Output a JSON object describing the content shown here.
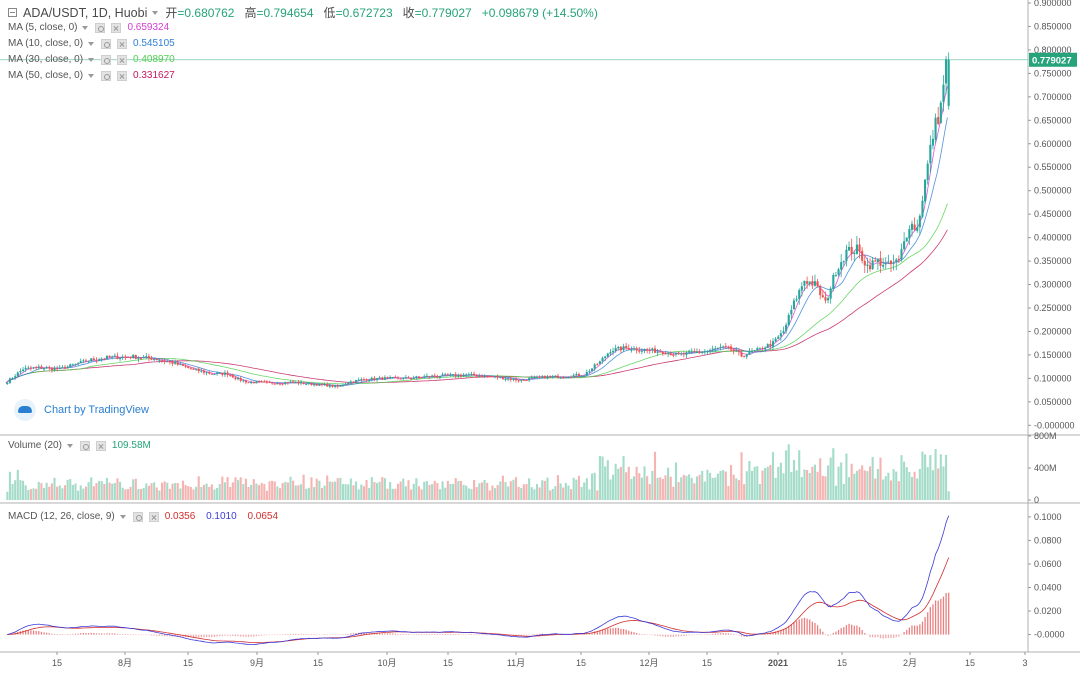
{
  "header": {
    "symbol": "ADA/USDT, 1D, Huobi",
    "ohlc": [
      {
        "k": "开",
        "v": "=0.680762"
      },
      {
        "k": "高",
        "v": "=0.794654"
      },
      {
        "k": "低",
        "v": "=0.672723"
      },
      {
        "k": "收",
        "v": "=0.779027"
      }
    ],
    "change": "+0.098679 (+14.50%)"
  },
  "indicators": [
    {
      "label": "MA (5, close, 0)",
      "value": "0.659324",
      "color": "#d53bd5"
    },
    {
      "label": "MA (10, close, 0)",
      "value": "0.545105",
      "color": "#2f7fd6"
    },
    {
      "label": "MA (30, close, 0)",
      "value": "0.408970",
      "color": "#4fcf4f"
    },
    {
      "label": "MA (50, close, 0)",
      "value": "0.331627",
      "color": "#c2185b"
    }
  ],
  "volume_legend": {
    "label": "Volume (20)",
    "value": "109.58M",
    "color": "#26a37a"
  },
  "macd_legend": {
    "label": "MACD (12, 26, close, 9)",
    "hist": "0.0356",
    "macd": "0.1010",
    "signal": "0.0654",
    "hist_color": "#d32f2f",
    "macd_color": "#3a3ad8",
    "signal_color": "#d32f2f"
  },
  "watermark": "Chart by TradingView",
  "colors": {
    "up": "#26a69a",
    "down": "#ef5350",
    "vol_up": "#a5dcc9",
    "vol_down": "#f5b3b1",
    "ma5": "#d53bd5",
    "ma10": "#2f7fd6",
    "ma30": "#4fcf4f",
    "ma50": "#c2185b",
    "macd": "#3a3ad8",
    "signal": "#d32f2f",
    "last_price_bg": "#26a37a"
  },
  "chart_data": [
    {
      "type": "candlestick",
      "title": "ADA/USDT, 1D, Huobi",
      "x_ticks": [
        "15",
        "8月",
        "15",
        "9月",
        "15",
        "10月",
        "15",
        "11月",
        "15",
        "12月",
        "15",
        "2021",
        "15",
        "2月",
        "15",
        "3"
      ],
      "y_ticks": [
        "-0.000000",
        "0.050000",
        "0.100000",
        "0.150000",
        "0.200000",
        "0.250000",
        "0.300000",
        "0.350000",
        "0.400000",
        "0.450000",
        "0.500000",
        "0.550000",
        "0.600000",
        "0.650000",
        "0.700000",
        "0.750000",
        "0.800000",
        "0.850000",
        "0.900000"
      ],
      "ylim": [
        -0.01,
        0.9
      ],
      "last_price": "0.779027",
      "close_points": [
        [
          0,
          0.093
        ],
        [
          6,
          0.12
        ],
        [
          12,
          0.123
        ],
        [
          20,
          0.12
        ],
        [
          26,
          0.13
        ],
        [
          32,
          0.14
        ],
        [
          40,
          0.145
        ],
        [
          48,
          0.146
        ],
        [
          56,
          0.142
        ],
        [
          62,
          0.135
        ],
        [
          70,
          0.12
        ],
        [
          78,
          0.11
        ],
        [
          84,
          0.11
        ],
        [
          88,
          0.098
        ],
        [
          92,
          0.092
        ],
        [
          100,
          0.09
        ],
        [
          108,
          0.092
        ],
        [
          116,
          0.088
        ],
        [
          122,
          0.085
        ],
        [
          126,
          0.082
        ],
        [
          130,
          0.092
        ],
        [
          136,
          0.098
        ],
        [
          144,
          0.1
        ],
        [
          152,
          0.1
        ],
        [
          160,
          0.104
        ],
        [
          168,
          0.106
        ],
        [
          176,
          0.107
        ],
        [
          184,
          0.104
        ],
        [
          190,
          0.1
        ],
        [
          196,
          0.096
        ],
        [
          200,
          0.1
        ],
        [
          206,
          0.103
        ],
        [
          212,
          0.104
        ],
        [
          220,
          0.108
        ],
        [
          226,
          0.135
        ],
        [
          230,
          0.16
        ],
        [
          236,
          0.165
        ],
        [
          244,
          0.16
        ],
        [
          250,
          0.157
        ],
        [
          256,
          0.15
        ],
        [
          262,
          0.155
        ],
        [
          268,
          0.16
        ],
        [
          272,
          0.165
        ],
        [
          276,
          0.162
        ],
        [
          280,
          0.148
        ],
        [
          286,
          0.16
        ],
        [
          292,
          0.175
        ],
        [
          296,
          0.2
        ],
        [
          300,
          0.26
        ],
        [
          304,
          0.31
        ],
        [
          308,
          0.3
        ],
        [
          312,
          0.26
        ],
        [
          316,
          0.33
        ],
        [
          320,
          0.37
        ],
        [
          324,
          0.375
        ],
        [
          328,
          0.34
        ],
        [
          332,
          0.35
        ],
        [
          336,
          0.34
        ],
        [
          340,
          0.35
        ],
        [
          344,
          0.43
        ],
        [
          347,
          0.42
        ],
        [
          350,
          0.52
        ],
        [
          353,
          0.62
        ],
        [
          356,
          0.68
        ],
        [
          358,
          0.78
        ]
      ]
    },
    {
      "type": "bar",
      "title": "Volume (20)",
      "y_ticks": [
        "0",
        "400M",
        "800M"
      ],
      "ylim": [
        0,
        800
      ],
      "unit": "M",
      "last_value": "109.58M"
    },
    {
      "type": "line",
      "title": "MACD (12, 26, close, 9)",
      "y_ticks": [
        "-0.0000",
        "0.0200",
        "0.0400",
        "0.0600",
        "0.0800",
        "0.1000"
      ],
      "ylim": [
        -0.008,
        0.105
      ],
      "series": [
        {
          "name": "MACD",
          "last": 0.101
        },
        {
          "name": "Signal",
          "last": 0.0654
        },
        {
          "name": "Histogram",
          "last": 0.0356
        }
      ]
    }
  ]
}
